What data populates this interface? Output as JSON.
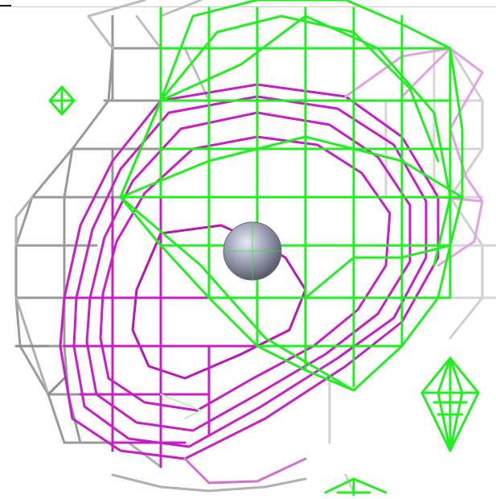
{
  "scene": {
    "description_free": true,
    "background_color": "#ffffff",
    "colors": {
      "grey_mesh": "#9a9a9a",
      "grey_mesh_light": "#d6d6d6",
      "magenta_mesh": "#c81ec8",
      "magenta_mesh_light": "#e6a0e6",
      "green_mesh": "#22ee22",
      "sphere": "#a9acc0"
    },
    "objects": [
      {
        "name": "grey-density-mesh",
        "color_key": "grey_mesh"
      },
      {
        "name": "magenta-density-mesh",
        "color_key": "magenta_mesh"
      },
      {
        "name": "green-density-mesh",
        "color_key": "green_mesh"
      },
      {
        "name": "central-atom-sphere",
        "color_key": "sphere"
      }
    ]
  }
}
